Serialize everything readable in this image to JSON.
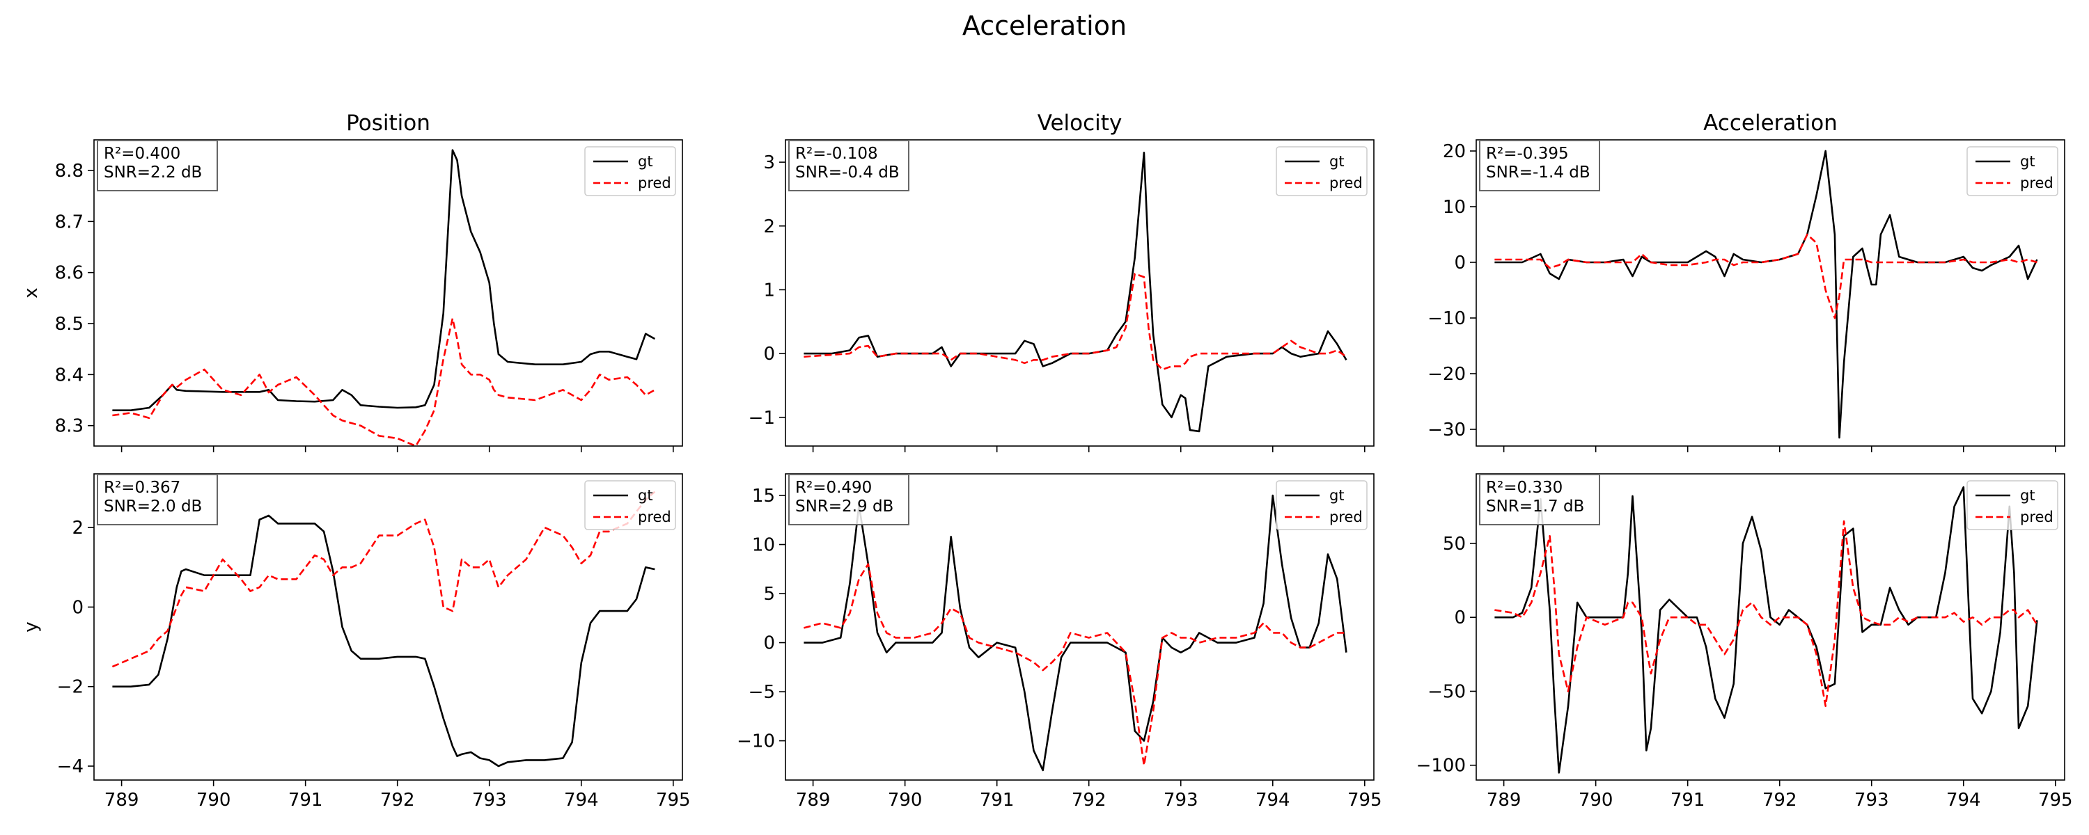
{
  "suptitle": "Acceleration",
  "colors": {
    "gt": "#000000",
    "pred": "#ff0000",
    "metrics_box_edge": "#666666",
    "legend_edge": "#cccccc"
  },
  "legend": {
    "placement": "top-right",
    "entries": [
      "gt",
      "pred"
    ]
  },
  "metrics_placement": "top-left",
  "chart_data": [
    {
      "type": "line",
      "title": "Position",
      "ylabel": "x",
      "row": "x",
      "xlim": [
        788.7,
        795.1
      ],
      "ylim": [
        8.26,
        8.86
      ],
      "xticks": [
        789,
        790,
        791,
        792,
        793,
        794,
        795
      ],
      "xtick_labels": false,
      "yticks": [
        8.3,
        8.4,
        8.5,
        8.6,
        8.7,
        8.8
      ],
      "metrics": [
        "R²=0.400",
        "SNR=2.2 dB"
      ],
      "x": [
        788.9,
        789.1,
        789.3,
        789.45,
        789.55,
        789.6,
        789.7,
        789.9,
        790.1,
        790.3,
        790.5,
        790.6,
        790.7,
        790.9,
        791.1,
        791.3,
        791.4,
        791.5,
        791.6,
        791.8,
        792.0,
        792.2,
        792.3,
        792.4,
        792.5,
        792.6,
        792.65,
        792.7,
        792.8,
        792.9,
        793.0,
        793.05,
        793.1,
        793.2,
        793.5,
        793.8,
        794.0,
        794.1,
        794.2,
        794.3,
        794.5,
        794.6,
        794.7,
        794.8
      ],
      "series": [
        {
          "name": "gt",
          "style": "solid",
          "values": [
            8.33,
            8.33,
            8.335,
            8.36,
            8.38,
            8.37,
            8.368,
            8.367,
            8.366,
            8.366,
            8.366,
            8.37,
            8.35,
            8.348,
            8.347,
            8.35,
            8.37,
            8.36,
            8.34,
            8.337,
            8.335,
            8.336,
            8.34,
            8.38,
            8.52,
            8.84,
            8.82,
            8.75,
            8.68,
            8.64,
            8.58,
            8.5,
            8.44,
            8.425,
            8.42,
            8.42,
            8.425,
            8.44,
            8.445,
            8.445,
            8.435,
            8.43,
            8.48,
            8.47
          ]
        },
        {
          "name": "pred",
          "style": "dashed",
          "values": [
            8.32,
            8.325,
            8.315,
            8.36,
            8.38,
            8.375,
            8.39,
            8.41,
            8.37,
            8.36,
            8.4,
            8.365,
            8.38,
            8.395,
            8.36,
            8.32,
            8.31,
            8.305,
            8.3,
            8.28,
            8.275,
            8.26,
            8.29,
            8.33,
            8.43,
            8.51,
            8.47,
            8.42,
            8.4,
            8.4,
            8.39,
            8.37,
            8.36,
            8.355,
            8.35,
            8.37,
            8.35,
            8.37,
            8.4,
            8.39,
            8.395,
            8.38,
            8.36,
            8.37
          ]
        }
      ]
    },
    {
      "type": "line",
      "title": "Velocity",
      "ylabel": "",
      "row": "x",
      "xlim": [
        788.7,
        795.1
      ],
      "ylim": [
        -1.45,
        3.35
      ],
      "xticks": [
        789,
        790,
        791,
        792,
        793,
        794,
        795
      ],
      "xtick_labels": false,
      "yticks": [
        -1,
        0,
        1,
        2,
        3
      ],
      "metrics": [
        "R²=-0.108",
        "SNR=-0.4 dB"
      ],
      "x": [
        788.9,
        789.2,
        789.4,
        789.5,
        789.6,
        789.7,
        789.9,
        790.1,
        790.3,
        790.4,
        790.5,
        790.6,
        790.8,
        791.0,
        791.2,
        791.3,
        791.4,
        791.5,
        791.6,
        791.8,
        792.0,
        792.2,
        792.3,
        792.4,
        792.5,
        792.6,
        792.65,
        792.7,
        792.8,
        792.9,
        793.0,
        793.05,
        793.1,
        793.2,
        793.3,
        793.5,
        793.8,
        794.0,
        794.1,
        794.2,
        794.3,
        794.5,
        794.6,
        794.7,
        794.8
      ],
      "series": [
        {
          "name": "gt",
          "style": "solid",
          "values": [
            0.0,
            0.0,
            0.05,
            0.25,
            0.28,
            -0.05,
            0.0,
            0.0,
            0.0,
            0.1,
            -0.2,
            0.0,
            0.0,
            0.0,
            0.0,
            0.2,
            0.15,
            -0.2,
            -0.15,
            0.0,
            0.0,
            0.05,
            0.3,
            0.5,
            1.5,
            3.15,
            1.5,
            0.3,
            -0.8,
            -1.0,
            -0.65,
            -0.7,
            -1.2,
            -1.22,
            -0.2,
            -0.05,
            0.0,
            0.0,
            0.1,
            0.0,
            -0.05,
            0.0,
            0.35,
            0.15,
            -0.1
          ]
        },
        {
          "name": "pred",
          "style": "dashed",
          "values": [
            -0.05,
            -0.02,
            0.0,
            0.1,
            0.12,
            -0.05,
            0.0,
            0.0,
            0.0,
            0.0,
            -0.1,
            0.0,
            0.0,
            -0.05,
            -0.1,
            -0.15,
            -0.1,
            -0.1,
            -0.05,
            0.0,
            0.0,
            0.05,
            0.1,
            0.4,
            1.25,
            1.2,
            0.4,
            -0.1,
            -0.25,
            -0.2,
            -0.2,
            -0.15,
            -0.05,
            0.0,
            0.0,
            0.0,
            0.0,
            0.0,
            0.1,
            0.2,
            0.1,
            0.0,
            0.0,
            0.05,
            -0.05
          ]
        }
      ]
    },
    {
      "type": "line",
      "title": "Acceleration",
      "ylabel": "",
      "row": "x",
      "xlim": [
        788.7,
        795.1
      ],
      "ylim": [
        -33,
        22
      ],
      "xticks": [
        789,
        790,
        791,
        792,
        793,
        794,
        795
      ],
      "xtick_labels": false,
      "yticks": [
        -30,
        -20,
        -10,
        0,
        10,
        20
      ],
      "metrics": [
        "R²=-0.395",
        "SNR=-1.4 dB"
      ],
      "x": [
        788.9,
        789.2,
        789.4,
        789.5,
        789.6,
        789.7,
        789.9,
        790.1,
        790.3,
        790.4,
        790.5,
        790.6,
        790.8,
        791.0,
        791.2,
        791.3,
        791.4,
        791.5,
        791.6,
        791.8,
        792.0,
        792.2,
        792.3,
        792.4,
        792.5,
        792.6,
        792.65,
        792.7,
        792.8,
        792.9,
        793.0,
        793.05,
        793.1,
        793.2,
        793.3,
        793.5,
        793.8,
        794.0,
        794.1,
        794.2,
        794.3,
        794.5,
        794.6,
        794.7,
        794.8
      ],
      "series": [
        {
          "name": "gt",
          "style": "solid",
          "values": [
            0.0,
            0.0,
            1.5,
            -2.0,
            -3.0,
            0.5,
            0.0,
            0.0,
            0.5,
            -2.5,
            1.0,
            0.0,
            0.0,
            0.0,
            2.0,
            1.0,
            -2.5,
            1.5,
            0.5,
            0.0,
            0.5,
            1.5,
            5.0,
            12.0,
            20.0,
            5.0,
            -31.5,
            -18.0,
            1.0,
            2.5,
            -4.0,
            -4.0,
            5.0,
            8.5,
            1.0,
            0.0,
            0.0,
            1.0,
            -1.0,
            -1.5,
            -0.5,
            1.0,
            3.0,
            -3.0,
            0.5
          ]
        },
        {
          "name": "pred",
          "style": "dashed",
          "values": [
            0.5,
            0.5,
            0.5,
            -1.0,
            -0.5,
            0.5,
            0.0,
            0.0,
            0.0,
            0.0,
            1.5,
            0.0,
            -0.5,
            -0.5,
            0.0,
            0.5,
            0.5,
            -0.5,
            0.0,
            0.0,
            0.5,
            1.5,
            5.0,
            3.5,
            -5.0,
            -10.0,
            -6.0,
            0.5,
            0.5,
            0.5,
            0.0,
            0.0,
            0.0,
            0.0,
            0.0,
            0.0,
            0.0,
            0.5,
            0.0,
            0.0,
            0.0,
            0.5,
            0.0,
            0.5,
            0.0
          ]
        }
      ]
    },
    {
      "type": "line",
      "title": "",
      "ylabel": "y",
      "row": "y",
      "xlim": [
        788.7,
        795.1
      ],
      "ylim": [
        -4.35,
        3.35
      ],
      "xticks": [
        789,
        790,
        791,
        792,
        793,
        794,
        795
      ],
      "xtick_labels": true,
      "yticks": [
        -4,
        -2,
        0,
        2
      ],
      "metrics": [
        "R²=0.367",
        "SNR=2.0 dB"
      ],
      "x": [
        788.9,
        789.1,
        789.3,
        789.4,
        789.5,
        789.6,
        789.65,
        789.7,
        789.9,
        790.1,
        790.3,
        790.4,
        790.5,
        790.6,
        790.7,
        790.9,
        791.1,
        791.2,
        791.3,
        791.4,
        791.5,
        791.6,
        791.8,
        792.0,
        792.2,
        792.3,
        792.4,
        792.5,
        792.6,
        792.65,
        792.7,
        792.8,
        792.9,
        793.0,
        793.1,
        793.2,
        793.4,
        793.6,
        793.8,
        793.9,
        794.0,
        794.1,
        794.2,
        794.3,
        794.5,
        794.6,
        794.7,
        794.8
      ],
      "series": [
        {
          "name": "gt",
          "style": "solid",
          "values": [
            -2.0,
            -2.0,
            -1.95,
            -1.7,
            -0.8,
            0.5,
            0.9,
            0.95,
            0.8,
            0.8,
            0.8,
            0.8,
            2.2,
            2.3,
            2.1,
            2.1,
            2.1,
            1.9,
            0.9,
            -0.5,
            -1.1,
            -1.3,
            -1.3,
            -1.25,
            -1.25,
            -1.3,
            -2.0,
            -2.8,
            -3.5,
            -3.75,
            -3.7,
            -3.65,
            -3.8,
            -3.85,
            -4.0,
            -3.9,
            -3.85,
            -3.85,
            -3.8,
            -3.4,
            -1.4,
            -0.4,
            -0.1,
            -0.1,
            -0.1,
            0.2,
            1.0,
            0.95
          ]
        },
        {
          "name": "pred",
          "style": "dashed",
          "values": [
            -1.5,
            -1.3,
            -1.1,
            -0.8,
            -0.6,
            0.0,
            0.3,
            0.5,
            0.4,
            1.2,
            0.7,
            0.4,
            0.5,
            0.8,
            0.7,
            0.7,
            1.3,
            1.2,
            0.8,
            1.0,
            1.0,
            1.1,
            1.8,
            1.8,
            2.1,
            2.2,
            1.5,
            0.0,
            -0.1,
            0.5,
            1.2,
            1.0,
            1.0,
            1.2,
            0.5,
            0.8,
            1.2,
            2.0,
            1.8,
            1.5,
            1.1,
            1.3,
            1.9,
            1.9,
            2.1,
            2.4,
            2.7,
            2.9
          ]
        }
      ]
    },
    {
      "type": "line",
      "title": "",
      "ylabel": "",
      "row": "y",
      "xlim": [
        788.7,
        795.1
      ],
      "ylim": [
        -14.0,
        17.2
      ],
      "xticks": [
        789,
        790,
        791,
        792,
        793,
        794,
        795
      ],
      "xtick_labels": true,
      "yticks": [
        -10,
        -5,
        0,
        5,
        10,
        15
      ],
      "metrics": [
        "R²=0.490",
        "SNR=2.9 dB"
      ],
      "x": [
        788.9,
        789.1,
        789.3,
        789.4,
        789.5,
        789.6,
        789.7,
        789.8,
        789.9,
        790.1,
        790.3,
        790.4,
        790.5,
        790.6,
        790.7,
        790.8,
        791.0,
        791.2,
        791.3,
        791.4,
        791.5,
        791.6,
        791.7,
        791.8,
        792.0,
        792.2,
        792.3,
        792.4,
        792.5,
        792.6,
        792.7,
        792.8,
        792.9,
        793.0,
        793.1,
        793.2,
        793.4,
        793.6,
        793.8,
        793.9,
        794.0,
        794.1,
        794.2,
        794.3,
        794.4,
        794.5,
        794.6,
        794.7,
        794.8
      ],
      "series": [
        {
          "name": "gt",
          "style": "solid",
          "values": [
            0.0,
            0.0,
            0.5,
            6.0,
            14.0,
            8.0,
            1.0,
            -1.0,
            0.0,
            0.0,
            0.0,
            1.0,
            10.8,
            3.5,
            -0.5,
            -1.5,
            0.0,
            -0.5,
            -5.0,
            -11.0,
            -13.0,
            -7.0,
            -1.5,
            0.0,
            0.0,
            0.0,
            -0.5,
            -1.0,
            -9.0,
            -10.0,
            -6.0,
            0.5,
            -0.5,
            -1.0,
            -0.5,
            1.0,
            0.0,
            0.0,
            0.5,
            4.0,
            15.0,
            8.0,
            2.5,
            -0.5,
            -0.5,
            2.0,
            9.0,
            6.5,
            -1.0
          ]
        },
        {
          "name": "pred",
          "style": "dashed",
          "values": [
            1.5,
            2.0,
            1.5,
            3.0,
            6.5,
            8.0,
            3.0,
            1.0,
            0.5,
            0.5,
            1.0,
            2.0,
            3.5,
            3.0,
            0.5,
            0.0,
            -0.5,
            -1.0,
            -1.5,
            -2.0,
            -2.8,
            -2.0,
            -1.0,
            1.0,
            0.5,
            1.0,
            0.0,
            -1.0,
            -6.0,
            -12.5,
            -7.0,
            0.5,
            1.0,
            0.5,
            0.5,
            0.0,
            0.5,
            0.5,
            1.0,
            2.0,
            1.0,
            1.0,
            0.0,
            -0.5,
            -0.5,
            0.0,
            0.5,
            1.0,
            1.0
          ]
        }
      ]
    },
    {
      "type": "line",
      "title": "",
      "ylabel": "",
      "row": "y",
      "xlim": [
        788.7,
        795.1
      ],
      "ylim": [
        -110,
        97
      ],
      "xticks": [
        789,
        790,
        791,
        792,
        793,
        794,
        795
      ],
      "xtick_labels": true,
      "yticks": [
        -100,
        -50,
        0,
        50
      ],
      "metrics": [
        "R²=0.330",
        "SNR=1.7 dB"
      ],
      "x": [
        788.9,
        789.1,
        789.2,
        789.3,
        789.4,
        789.5,
        789.55,
        789.6,
        789.7,
        789.8,
        789.9,
        790.1,
        790.3,
        790.35,
        790.4,
        790.5,
        790.55,
        790.6,
        790.7,
        790.8,
        791.0,
        791.1,
        791.2,
        791.3,
        791.4,
        791.5,
        791.6,
        791.7,
        791.8,
        791.9,
        792.0,
        792.1,
        792.2,
        792.3,
        792.4,
        792.5,
        792.6,
        792.7,
        792.8,
        792.9,
        793.0,
        793.1,
        793.2,
        793.3,
        793.4,
        793.5,
        793.7,
        793.8,
        793.9,
        794.0,
        794.1,
        794.2,
        794.3,
        794.4,
        794.5,
        794.55,
        794.6,
        794.7,
        794.8
      ],
      "series": [
        {
          "name": "gt",
          "style": "solid",
          "values": [
            0.0,
            0.0,
            3.0,
            20.0,
            80.0,
            5.0,
            -55.0,
            -105.0,
            -60.0,
            10.0,
            0.0,
            0.0,
            0.0,
            30.0,
            82.0,
            -10.0,
            -90.0,
            -75.0,
            5.0,
            12.0,
            0.0,
            0.0,
            -20.0,
            -55.0,
            -68.0,
            -45.0,
            50.0,
            68.0,
            45.0,
            0.0,
            -5.0,
            5.0,
            0.0,
            -5.0,
            -20.0,
            -48.0,
            -45.0,
            55.0,
            60.0,
            -10.0,
            -5.0,
            -5.0,
            20.0,
            5.0,
            -5.0,
            0.0,
            0.0,
            30.0,
            75.0,
            88.0,
            -55.0,
            -65.0,
            -50.0,
            -10.0,
            75.0,
            30.0,
            -75.0,
            -60.0,
            -2.0
          ]
        },
        {
          "name": "pred",
          "style": "dashed",
          "values": [
            5.0,
            3.0,
            0.0,
            10.0,
            30.0,
            55.0,
            20.0,
            -25.0,
            -50.0,
            -20.0,
            0.0,
            -5.0,
            0.0,
            10.0,
            10.0,
            0.0,
            -20.0,
            -38.0,
            -15.0,
            0.0,
            0.0,
            -5.0,
            -5.0,
            -15.0,
            -25.0,
            -15.0,
            5.0,
            10.0,
            0.0,
            -5.0,
            0.0,
            0.0,
            0.0,
            -5.0,
            -25.0,
            -60.0,
            -15.0,
            65.0,
            20.0,
            0.0,
            -3.0,
            -5.0,
            -5.0,
            0.0,
            -3.0,
            0.0,
            0.0,
            0.0,
            3.0,
            -3.0,
            0.0,
            -5.0,
            0.0,
            0.0,
            5.0,
            5.0,
            0.0,
            5.0,
            -5.0
          ]
        }
      ]
    }
  ]
}
